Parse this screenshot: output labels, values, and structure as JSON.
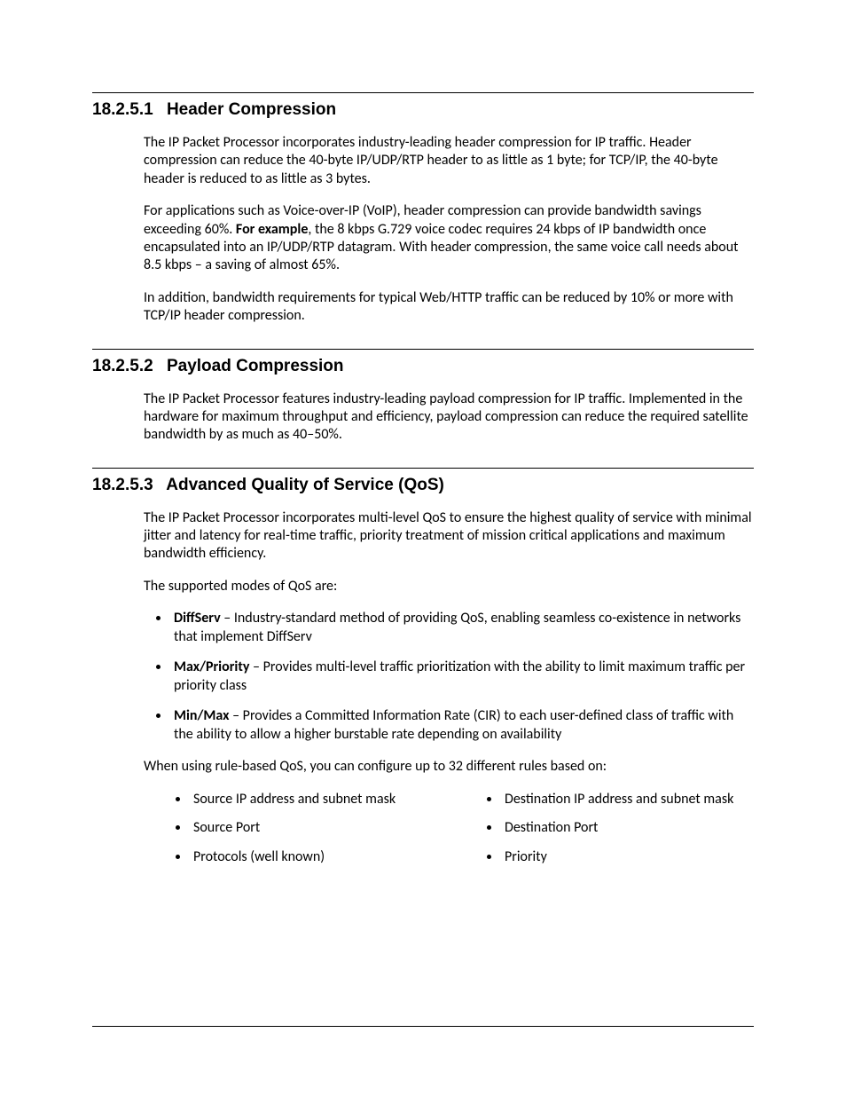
{
  "sections": [
    {
      "number": "18.2.5.1",
      "title": "Header Compression",
      "paragraphs": [
        {
          "runs": [
            {
              "text": "The IP Packet Processor incorporates industry-leading header compression for IP traffic. Header compression can reduce the 40-byte IP/UDP/RTP header to as little as 1 byte; for TCP/IP, the 40-byte header is reduced to as little as 3 bytes."
            }
          ]
        },
        {
          "runs": [
            {
              "text": "For applications such as Voice-over-IP (VoIP), header compression can provide bandwidth savings exceeding 60%. "
            },
            {
              "text": "For example",
              "bold": true
            },
            {
              "text": ", the 8 kbps G.729 voice codec requires 24 kbps of IP bandwidth once encapsulated into an IP/UDP/RTP datagram. With header compression, the same voice call needs about 8.5 kbps – a saving of almost 65%."
            }
          ]
        },
        {
          "runs": [
            {
              "text": "In addition, bandwidth requirements for typical Web/HTTP traffic can be reduced by 10% or more with TCP/IP header compression."
            }
          ]
        }
      ]
    },
    {
      "number": "18.2.5.2",
      "title": "Payload Compression",
      "paragraphs": [
        {
          "runs": [
            {
              "text": "The IP Packet Processor features industry-leading payload compression for IP traffic. Implemented in the hardware for maximum throughput and efficiency, payload compression can reduce the required satellite bandwidth by as much as 40–50%."
            }
          ]
        }
      ]
    },
    {
      "number": "18.2.5.3",
      "title": "Advanced Quality of Service (QoS)",
      "paragraphs": [
        {
          "runs": [
            {
              "text": "The IP Packet Processor incorporates multi-level QoS to ensure the highest quality of service with minimal jitter and latency for real-time traffic, priority treatment of mission critical applications and maximum bandwidth efficiency."
            }
          ]
        },
        {
          "runs": [
            {
              "text": "The supported modes of QoS are:"
            }
          ]
        }
      ],
      "bullets": [
        {
          "runs": [
            {
              "text": "DiffServ",
              "bold": true
            },
            {
              "text": " – Industry-standard method of providing QoS, enabling seamless co-existence in networks that implement DiffServ"
            }
          ]
        },
        {
          "runs": [
            {
              "text": "Max/Priority",
              "bold": true
            },
            {
              "text": " – Provides multi-level traffic prioritization with the ability to limit maximum traffic per priority class"
            }
          ]
        },
        {
          "runs": [
            {
              "text": "Min/Max",
              "bold": true
            },
            {
              "text": " – Provides a Committed Information Rate (CIR) to each user-defined class of traffic with the ability to allow a higher burstable rate depending on availability"
            }
          ]
        }
      ],
      "post_paragraph": {
        "runs": [
          {
            "text": "When using rule-based QoS, you can configure up to 32 different rules based on:"
          }
        ]
      },
      "two_col": {
        "left": [
          "Source IP address and subnet mask",
          "Source Port",
          "Protocols (well known)"
        ],
        "right": [
          "Destination IP address and subnet mask",
          "Destination Port",
          "Priority"
        ]
      }
    }
  ]
}
